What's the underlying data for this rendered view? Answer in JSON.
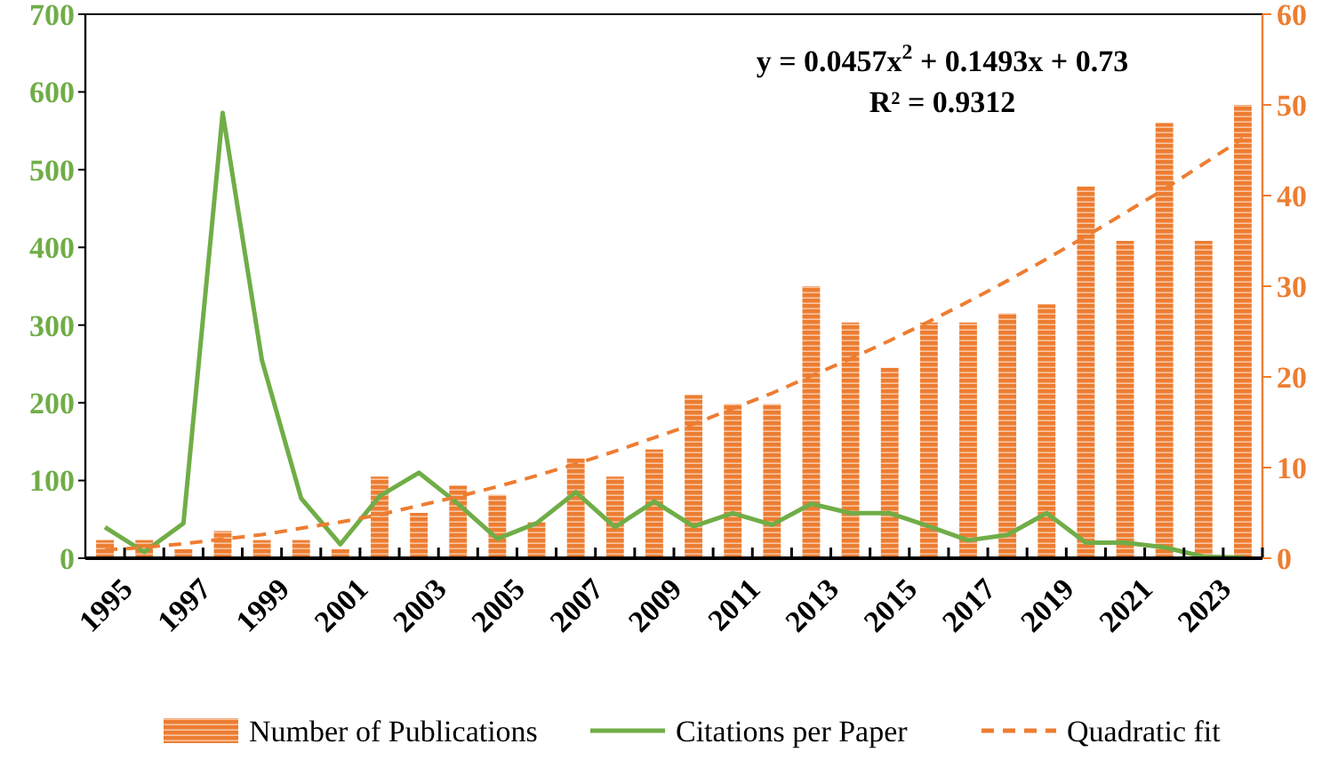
{
  "chart_data": {
    "type": "bar",
    "categories": [
      "1995",
      null,
      "1997",
      null,
      "1999",
      null,
      "2001",
      null,
      "2003",
      null,
      "2005",
      null,
      "2007",
      null,
      "2009",
      null,
      "2011",
      null,
      "2013",
      null,
      "2015",
      null,
      "2017",
      null,
      "2019",
      null,
      "2021",
      null,
      "2023",
      null
    ],
    "series": [
      {
        "name": "Number of Publications",
        "axis": "y2",
        "color": "#ed7d31",
        "values": [
          2,
          2,
          1,
          3,
          2,
          2,
          1,
          9,
          5,
          8,
          7,
          4,
          11,
          9,
          12,
          18,
          17,
          17,
          30,
          26,
          21,
          26,
          26,
          27,
          28,
          41,
          35,
          48,
          35,
          50
        ]
      },
      {
        "name": "Citations per Paper",
        "type": "line",
        "color": "#70ad47",
        "values": [
          40,
          8,
          45,
          573,
          255,
          77,
          18,
          80,
          110,
          70,
          25,
          45,
          85,
          40,
          73,
          41,
          58,
          43,
          70,
          58,
          58,
          41,
          23,
          30,
          58,
          20,
          20,
          14,
          2,
          1
        ]
      },
      {
        "name": "Quadratic fit",
        "type": "line",
        "axis": "y2",
        "line_style": "dashed",
        "color": "#ed7d31",
        "values": [
          0.9,
          1.2,
          1.6,
          2.1,
          2.6,
          3.3,
          4.0,
          4.8,
          5.8,
          6.8,
          7.9,
          9.1,
          10.4,
          11.8,
          13.3,
          14.8,
          16.5,
          18.2,
          20.1,
          22.0,
          24.0,
          26.1,
          28.3,
          30.6,
          33.0,
          35.5,
          38.1,
          40.7,
          43.5,
          46.3
        ]
      }
    ],
    "ylim": [
      0,
      700
    ],
    "yticks": [
      0,
      100,
      200,
      300,
      400,
      500,
      600,
      700
    ],
    "y2lim": [
      0,
      60
    ],
    "y2ticks": [
      0,
      10,
      20,
      30,
      40,
      50,
      60
    ],
    "annotations": [
      "y = 0.0457x$^{2}$ + 0.1493x + 0.73",
      "R² = 0.9312"
    ],
    "grid": false,
    "legend": "bottom"
  }
}
